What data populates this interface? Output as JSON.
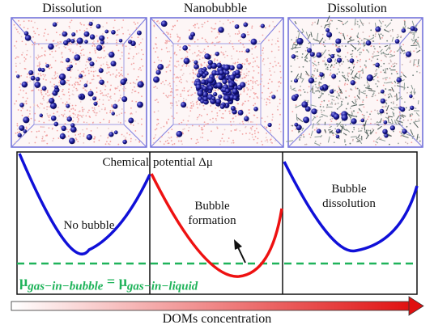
{
  "panels": [
    {
      "title": "Dissolution",
      "variant": "pink-sparse"
    },
    {
      "title": "Nanobubble",
      "variant": "pink-cluster"
    },
    {
      "title": "Dissolution",
      "variant": "mixed-dense"
    }
  ],
  "plot": {
    "header_left": "Chemical",
    "header_right": "potential Δμ",
    "curves": [
      {
        "label": "No bubble",
        "color": "#1010d8"
      },
      {
        "label_line1": "Bubble",
        "label_line2": "formation",
        "color": "#ee1111"
      },
      {
        "label_line1": "Bubble",
        "label_line2": "dissolution",
        "color": "#1010d8"
      }
    ],
    "equilibrium_color": "#1fb35a",
    "equation_left": "μ",
    "equation_left_sub": "gas−in−bubble",
    "equation_eq": " = ",
    "equation_right": "μ",
    "equation_right_sub": "gas−in−liquid"
  },
  "axis": {
    "label": "DOMs concentration",
    "gradient_start": "#ffffff",
    "gradient_end": "#e01010"
  }
}
